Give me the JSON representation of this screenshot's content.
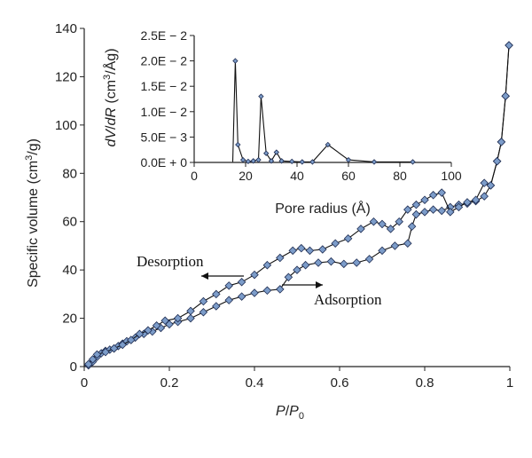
{
  "chart_data": [
    {
      "type": "line",
      "xlabel_parts": [
        "P",
        "/",
        "P",
        "0"
      ],
      "ylabel_parts": [
        "Specific volume (cm",
        "3",
        "/g)"
      ],
      "xlim": [
        0,
        1
      ],
      "ylim": [
        0,
        140
      ],
      "x_ticks": [
        "0",
        "0.2",
        "0.4",
        "0.6",
        "0.8",
        "1"
      ],
      "y_ticks": [
        "0",
        "20",
        "40",
        "60",
        "80",
        "100",
        "120",
        "140"
      ],
      "annotations": [
        "Desorption",
        "Adsorption"
      ],
      "series": [
        {
          "name": "Adsorption",
          "points": [
            [
              0.01,
              0.5
            ],
            [
              0.02,
              2
            ],
            [
              0.03,
              4
            ],
            [
              0.04,
              5.5
            ],
            [
              0.05,
              6.5
            ],
            [
              0.06,
              7
            ],
            [
              0.07,
              7.5
            ],
            [
              0.08,
              8.5
            ],
            [
              0.09,
              9.5
            ],
            [
              0.1,
              10.5
            ],
            [
              0.12,
              12
            ],
            [
              0.14,
              13.5
            ],
            [
              0.16,
              14.5
            ],
            [
              0.18,
              16
            ],
            [
              0.2,
              17.5
            ],
            [
              0.22,
              18.5
            ],
            [
              0.25,
              20
            ],
            [
              0.28,
              22.5
            ],
            [
              0.31,
              25
            ],
            [
              0.34,
              27.5
            ],
            [
              0.37,
              29
            ],
            [
              0.4,
              30.5
            ],
            [
              0.43,
              31.5
            ],
            [
              0.46,
              32
            ],
            [
              0.48,
              37
            ],
            [
              0.5,
              40
            ],
            [
              0.52,
              42
            ],
            [
              0.55,
              43
            ],
            [
              0.58,
              43.5
            ],
            [
              0.61,
              42.5
            ],
            [
              0.64,
              43
            ],
            [
              0.67,
              44.5
            ],
            [
              0.7,
              48
            ],
            [
              0.73,
              50
            ],
            [
              0.76,
              51
            ],
            [
              0.77,
              58
            ],
            [
              0.78,
              63
            ],
            [
              0.8,
              64
            ],
            [
              0.82,
              65
            ],
            [
              0.84,
              64.5
            ],
            [
              0.86,
              66
            ],
            [
              0.88,
              67
            ],
            [
              0.9,
              67.5
            ],
            [
              0.92,
              68.5
            ],
            [
              0.94,
              70.5
            ],
            [
              0.955,
              75
            ],
            [
              0.97,
              85
            ],
            [
              0.98,
              93
            ],
            [
              0.99,
              112
            ],
            [
              0.998,
              133
            ]
          ]
        },
        {
          "name": "Desorption",
          "points": [
            [
              0.998,
              133
            ],
            [
              0.99,
              112
            ],
            [
              0.98,
              93
            ],
            [
              0.97,
              85
            ],
            [
              0.955,
              75
            ],
            [
              0.94,
              76
            ],
            [
              0.92,
              69
            ],
            [
              0.9,
              68
            ],
            [
              0.88,
              66
            ],
            [
              0.86,
              64
            ],
            [
              0.84,
              72
            ],
            [
              0.82,
              71
            ],
            [
              0.8,
              69
            ],
            [
              0.78,
              67
            ],
            [
              0.76,
              65
            ],
            [
              0.74,
              60
            ],
            [
              0.72,
              57
            ],
            [
              0.7,
              59
            ],
            [
              0.68,
              60
            ],
            [
              0.65,
              57
            ],
            [
              0.62,
              53
            ],
            [
              0.59,
              51
            ],
            [
              0.56,
              48.5
            ],
            [
              0.53,
              48
            ],
            [
              0.51,
              49
            ],
            [
              0.49,
              48
            ],
            [
              0.46,
              45
            ],
            [
              0.43,
              42
            ],
            [
              0.4,
              38
            ],
            [
              0.37,
              35
            ],
            [
              0.34,
              33.5
            ],
            [
              0.31,
              30
            ],
            [
              0.28,
              27
            ],
            [
              0.25,
              23
            ],
            [
              0.22,
              20
            ],
            [
              0.19,
              19
            ],
            [
              0.17,
              17
            ],
            [
              0.15,
              15
            ],
            [
              0.13,
              13.5
            ],
            [
              0.11,
              11
            ],
            [
              0.09,
              9
            ],
            [
              0.07,
              7.5
            ],
            [
              0.05,
              6
            ],
            [
              0.03,
              5
            ],
            [
              0.02,
              3
            ],
            [
              0.01,
              1
            ]
          ]
        }
      ]
    },
    {
      "type": "line",
      "xlabel": "Pore radius (Å)",
      "ylabel_parts": [
        "dV",
        "/",
        "dR",
        " (cm",
        "3",
        "/Åg)"
      ],
      "xlim": [
        0,
        100
      ],
      "ylim": [
        0,
        0.025
      ],
      "x_ticks": [
        "0",
        "20",
        "40",
        "60",
        "80",
        "100"
      ],
      "y_ticks": [
        "0.0E + 0",
        "5.0E − 3",
        "1.0E − 2",
        "1.5E − 2",
        "2.0E − 2",
        "2.5E − 2"
      ],
      "series": [
        {
          "points": [
            [
              15,
              0.0001
            ],
            [
              16,
              0.02
            ],
            [
              17,
              0.0035
            ],
            [
              19,
              0.0005
            ],
            [
              21,
              0.0002
            ],
            [
              23,
              0.0003
            ],
            [
              25,
              0.0005
            ],
            [
              26,
              0.013
            ],
            [
              28,
              0.0018
            ],
            [
              30,
              0.0003
            ],
            [
              32,
              0.002
            ],
            [
              34,
              0.0003
            ],
            [
              38,
              0.0002
            ],
            [
              42,
              0.0001
            ],
            [
              46,
              0.0001
            ],
            [
              52,
              0.0035
            ],
            [
              60,
              0.0005
            ],
            [
              70,
              0.0001
            ],
            [
              85,
              0.0001
            ]
          ],
          "marker_points": [
            [
              16,
              0.02
            ],
            [
              17,
              0.0035
            ],
            [
              19,
              0.0005
            ],
            [
              21,
              0.0002
            ],
            [
              23,
              0.0003
            ],
            [
              25,
              0.0005
            ],
            [
              26,
              0.013
            ],
            [
              28,
              0.0018
            ],
            [
              30,
              0.0003
            ],
            [
              32,
              0.002
            ],
            [
              34,
              0.0003
            ],
            [
              38,
              0.0002
            ],
            [
              42,
              0.0001
            ],
            [
              46,
              0.0001
            ],
            [
              52,
              0.0035
            ],
            [
              60,
              0.0005
            ],
            [
              70,
              0.0001
            ],
            [
              85,
              0.0001
            ]
          ]
        }
      ]
    }
  ],
  "colors": {
    "marker_fill": "#7c9cc9",
    "marker_stroke": "#1f2d52",
    "line": "#111111",
    "axis": "#222222"
  }
}
